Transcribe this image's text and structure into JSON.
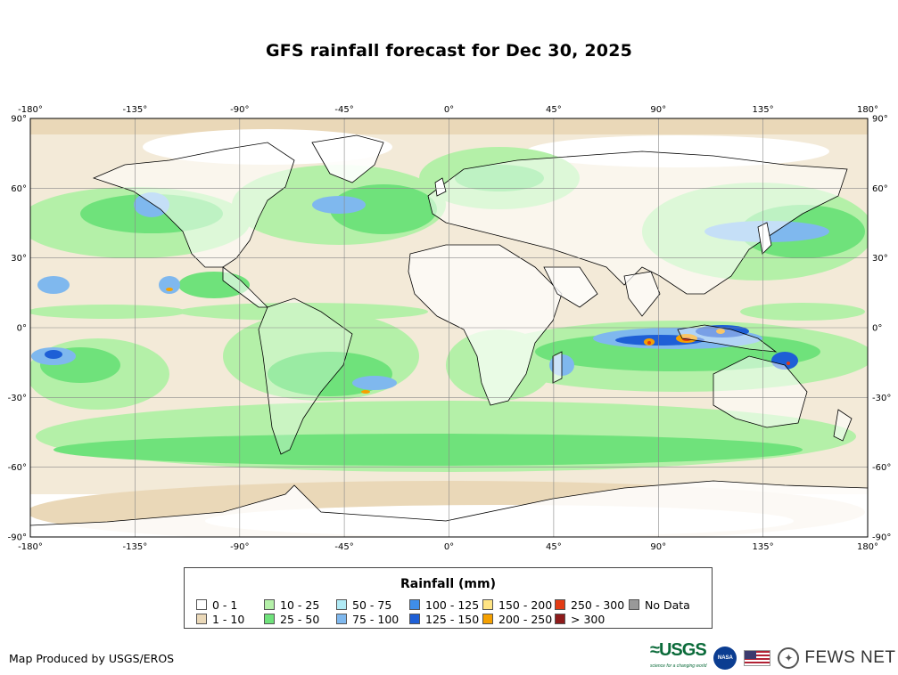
{
  "title": "GFS rainfall forecast for Dec 30, 2025",
  "axes": {
    "lon_ticks": [
      "-180°",
      "-135°",
      "-90°",
      "-45°",
      "0°",
      "45°",
      "90°",
      "135°",
      "180°"
    ],
    "lat_ticks": [
      "90°",
      "60°",
      "30°",
      "0°",
      "-30°",
      "-60°",
      "-90°"
    ]
  },
  "legend": {
    "title": "Rainfall (mm)",
    "items": [
      {
        "label": "0 - 1",
        "color": "#ffffff"
      },
      {
        "label": "1 - 10",
        "color": "#ead8b8"
      },
      {
        "label": "10 - 25",
        "color": "#b4f0a8"
      },
      {
        "label": "25 - 50",
        "color": "#6fe27b"
      },
      {
        "label": "50 - 75",
        "color": "#b0eaf5"
      },
      {
        "label": "75 - 100",
        "color": "#7fb8ee"
      },
      {
        "label": "100 - 125",
        "color": "#3f8ee8"
      },
      {
        "label": "125 - 150",
        "color": "#1e5fd6"
      },
      {
        "label": "150 - 200",
        "color": "#ffe483"
      },
      {
        "label": "200 - 250",
        "color": "#f5a000"
      },
      {
        "label": "250 - 300",
        "color": "#e23b14"
      },
      {
        "label": "> 300",
        "color": "#8e1b1b"
      },
      {
        "label": "No Data",
        "color": "#999999"
      }
    ]
  },
  "credit": "Map Produced by USGS/EROS",
  "logos": {
    "usgs": "≈USGS",
    "usgs_tagline": "science for a changing world",
    "nasa": "NASA",
    "fews": "FEWS NET"
  }
}
